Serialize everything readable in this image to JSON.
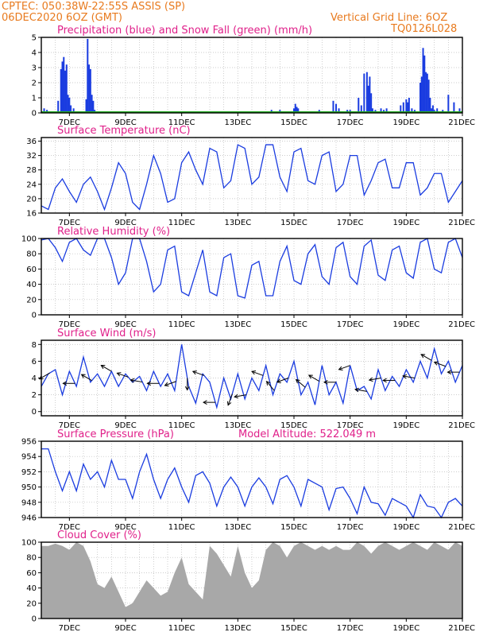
{
  "header": {
    "line1": "CPTEC:  050:38W-22:55S  ASSIS (SP)",
    "line2": "06DEC2020 6OZ (GMT)",
    "grid_note": "Vertical Grid Line: 6OZ",
    "code": "TQ0126L028"
  },
  "x_axis": {
    "unit": "days since 06DEC2020 06Z",
    "range": [
      0,
      15
    ],
    "tick_labels": [
      "7DEC",
      "9DEC",
      "11DEC",
      "13DEC",
      "15DEC",
      "17DEC",
      "19DEC",
      "21DEC"
    ],
    "tick_positions": [
      1,
      3,
      5,
      7,
      9,
      11,
      13,
      15
    ],
    "vertical_grid_every": 0.5
  },
  "colors": {
    "header": "#e87a1e",
    "panel_title": "#e0208a",
    "line": "#1a3ce0",
    "precip": "#1a3ce0",
    "snow": "#22aa22",
    "cloud": "#a8a8a8",
    "arrow": "#000000"
  },
  "panels": [
    {
      "id": "precip",
      "title": "Precipitation (blue) and Snow Fall (green) (mm/h)",
      "yticks": [
        "0",
        "1",
        "2",
        "3",
        "4",
        "5"
      ]
    },
    {
      "id": "temp",
      "title": "Surface Temperature (nC)",
      "yticks": [
        "16",
        "20",
        "24",
        "28",
        "32",
        "36"
      ]
    },
    {
      "id": "rh",
      "title": "Relative Humidity (%)",
      "yticks": [
        "0",
        "20",
        "40",
        "60",
        "80",
        "100"
      ]
    },
    {
      "id": "wind",
      "title": "Surface Wind (m/s)",
      "yticks": [
        "0",
        "2",
        "4",
        "6",
        "8"
      ]
    },
    {
      "id": "pres",
      "title": "Surface Pressure (hPa)",
      "extra": "Model Altitude: 522.049  m",
      "yticks": [
        "946",
        "948",
        "950",
        "952",
        "954",
        "956"
      ]
    },
    {
      "id": "cloud",
      "title": "Cloud Cover (%)",
      "yticks": [
        "0",
        "20",
        "40",
        "60",
        "80",
        "100"
      ]
    }
  ],
  "chart_data": [
    {
      "id": "precip",
      "type": "bar",
      "ylim": [
        0,
        5
      ],
      "x": [
        0.1,
        0.2,
        0.6,
        0.7,
        0.75,
        0.8,
        0.85,
        0.9,
        0.95,
        1.0,
        1.05,
        1.15,
        1.6,
        1.65,
        1.7,
        1.75,
        1.8,
        1.85,
        1.9,
        3.3,
        5.2,
        8.1,
        8.2,
        8.3,
        8.4,
        8.5,
        9.0,
        9.05,
        9.1,
        9.15,
        9.2,
        9.9,
        10.4,
        10.5,
        10.6,
        10.9,
        11.0,
        11.3,
        11.4,
        11.5,
        11.6,
        11.65,
        11.7,
        11.75,
        11.8,
        11.9,
        12.1,
        12.2,
        12.3,
        12.4,
        12.8,
        12.9,
        13.0,
        13.05,
        13.1,
        13.2,
        13.3,
        13.5,
        13.55,
        13.6,
        13.65,
        13.7,
        13.75,
        13.8,
        13.85,
        13.9,
        13.95,
        14.0,
        14.1,
        14.3,
        14.5,
        14.7,
        14.9
      ],
      "values": [
        0.3,
        0.2,
        0.8,
        2.9,
        3.4,
        3.7,
        2.8,
        3.2,
        1.2,
        1.0,
        0.5,
        0.3,
        0.9,
        4.9,
        3.2,
        2.9,
        1.2,
        0.8,
        0.2,
        0.1,
        0.1,
        0.1,
        0.2,
        0.1,
        0.1,
        0.2,
        0.3,
        0.6,
        0.4,
        0.3,
        0.1,
        0.2,
        0.8,
        0.6,
        0.3,
        0.2,
        0.2,
        1.0,
        0.5,
        2.6,
        2.7,
        1.8,
        2.4,
        1.3,
        0.3,
        0.2,
        0.3,
        0.2,
        0.3,
        0.1,
        0.5,
        0.7,
        0.9,
        0.7,
        1.0,
        0.3,
        0.2,
        2.0,
        2.4,
        4.3,
        3.8,
        2.7,
        2.6,
        2.2,
        1.0,
        0.3,
        0.5,
        0.2,
        0.3,
        0.2,
        1.2,
        0.7,
        0.3
      ],
      "snow": 0
    },
    {
      "id": "temp",
      "type": "line",
      "ylim": [
        16,
        37
      ],
      "x": [
        0,
        0.25,
        0.5,
        0.75,
        1,
        1.25,
        1.5,
        1.75,
        2,
        2.25,
        2.5,
        2.75,
        3,
        3.25,
        3.5,
        3.75,
        4,
        4.25,
        4.5,
        4.75,
        5,
        5.25,
        5.5,
        5.75,
        6,
        6.25,
        6.5,
        6.75,
        7,
        7.25,
        7.5,
        7.75,
        8,
        8.25,
        8.5,
        8.75,
        9,
        9.25,
        9.5,
        9.75,
        10,
        10.25,
        10.5,
        10.75,
        11,
        11.25,
        11.5,
        11.75,
        12,
        12.25,
        12.5,
        12.75,
        13,
        13.25,
        13.5,
        13.75,
        14,
        14.25,
        14.5,
        14.75,
        15
      ],
      "values": [
        18,
        17,
        23,
        25.5,
        22,
        19,
        24,
        26,
        22,
        17,
        23,
        30,
        27,
        19,
        17,
        24,
        32,
        27,
        19,
        20,
        30,
        33,
        28,
        24,
        34,
        33,
        23,
        25,
        35,
        34,
        24,
        26,
        35,
        35,
        26,
        22,
        33,
        34,
        25,
        24,
        32,
        33,
        22,
        24,
        32,
        32,
        21,
        25,
        30,
        31,
        23,
        23,
        30,
        30,
        21,
        23,
        27,
        27,
        19,
        22,
        25
      ]
    },
    {
      "id": "rh",
      "type": "line",
      "ylim": [
        0,
        100
      ],
      "x": [
        0,
        0.25,
        0.5,
        0.75,
        1,
        1.25,
        1.5,
        1.75,
        2,
        2.25,
        2.5,
        2.75,
        3,
        3.25,
        3.5,
        3.75,
        4,
        4.25,
        4.5,
        4.75,
        5,
        5.25,
        5.5,
        5.75,
        6,
        6.25,
        6.5,
        6.75,
        7,
        7.25,
        7.5,
        7.75,
        8,
        8.25,
        8.5,
        8.75,
        9,
        9.25,
        9.5,
        9.75,
        10,
        10.25,
        10.5,
        10.75,
        11,
        11.25,
        11.5,
        11.75,
        12,
        12.25,
        12.5,
        12.75,
        13,
        13.25,
        13.5,
        13.75,
        14,
        14.25,
        14.5,
        14.75,
        15
      ],
      "values": [
        98,
        100,
        88,
        70,
        95,
        100,
        85,
        78,
        100,
        100,
        75,
        40,
        55,
        100,
        100,
        70,
        30,
        40,
        85,
        90,
        30,
        25,
        55,
        85,
        30,
        25,
        75,
        80,
        25,
        22,
        65,
        70,
        25,
        25,
        70,
        90,
        45,
        40,
        80,
        92,
        50,
        40,
        88,
        95,
        50,
        40,
        90,
        98,
        52,
        45,
        85,
        90,
        55,
        48,
        95,
        100,
        60,
        55,
        95,
        100,
        75
      ]
    },
    {
      "id": "wind",
      "type": "line",
      "ylim": [
        -0.5,
        8.5
      ],
      "x": [
        0,
        0.25,
        0.5,
        0.75,
        1,
        1.25,
        1.5,
        1.75,
        2,
        2.25,
        2.5,
        2.75,
        3,
        3.25,
        3.5,
        3.75,
        4,
        4.25,
        4.5,
        4.75,
        5,
        5.25,
        5.5,
        5.75,
        6,
        6.25,
        6.5,
        6.75,
        7,
        7.25,
        7.5,
        7.75,
        8,
        8.25,
        8.5,
        8.75,
        9,
        9.25,
        9.5,
        9.75,
        10,
        10.25,
        10.5,
        10.75,
        11,
        11.25,
        11.5,
        11.75,
        12,
        12.25,
        12.5,
        12.75,
        13,
        13.25,
        13.5,
        13.75,
        14,
        14.25,
        14.5,
        14.75,
        15
      ],
      "values": [
        3,
        4.5,
        5,
        2,
        4.8,
        3,
        6.5,
        3.5,
        4.5,
        3,
        4.8,
        3,
        4.5,
        3.5,
        4.2,
        2.5,
        4.8,
        3,
        4.5,
        2.5,
        8,
        3,
        1,
        4.5,
        3.5,
        0.5,
        4,
        1.5,
        4.5,
        1.5,
        4,
        2.5,
        5.5,
        2,
        4.5,
        3.5,
        6,
        2,
        3.5,
        0.8,
        5.5,
        2,
        3.5,
        1,
        5.5,
        2.5,
        3,
        1.5,
        5,
        2.5,
        4.2,
        3,
        5,
        3.5,
        6,
        4,
        7.5,
        4.5,
        6,
        3.5,
        5.5
      ],
      "arrow_times": [
        0.3,
        1.2,
        1.8,
        2.5,
        3.1,
        3.6,
        4.2,
        4.8,
        5.2,
        5.8,
        6.2,
        6.8,
        7.3,
        7.9,
        8.3,
        8.8,
        9.4,
        9.9,
        10.5,
        11.0,
        11.6,
        12.1,
        12.6,
        13.3,
        13.9,
        14.4,
        14.9
      ],
      "arrow_angles_deg": [
        210,
        180,
        150,
        150,
        160,
        170,
        180,
        200,
        270,
        160,
        180,
        250,
        190,
        160,
        130,
        200,
        140,
        150,
        180,
        200,
        170,
        190,
        180,
        170,
        150,
        160,
        180
      ]
    },
    {
      "id": "pres",
      "type": "line",
      "ylim": [
        946,
        956
      ],
      "x": [
        0,
        0.25,
        0.5,
        0.75,
        1,
        1.25,
        1.5,
        1.75,
        2,
        2.25,
        2.5,
        2.75,
        3,
        3.25,
        3.5,
        3.75,
        4,
        4.25,
        4.5,
        4.75,
        5,
        5.25,
        5.5,
        5.75,
        6,
        6.25,
        6.5,
        6.75,
        7,
        7.25,
        7.5,
        7.75,
        8,
        8.25,
        8.5,
        8.75,
        9,
        9.25,
        9.5,
        9.75,
        10,
        10.25,
        10.5,
        10.75,
        11,
        11.25,
        11.5,
        11.75,
        12,
        12.25,
        12.5,
        12.75,
        13,
        13.25,
        13.5,
        13.75,
        14,
        14.25,
        14.5,
        14.75,
        15
      ],
      "values": [
        955,
        955,
        952,
        949.5,
        952,
        949.5,
        953,
        951,
        952,
        950,
        953.5,
        951,
        951,
        948.5,
        952,
        954.3,
        951,
        948.5,
        951,
        952.5,
        950,
        948,
        951.5,
        952,
        950.5,
        947.5,
        950,
        951.3,
        950,
        947.5,
        950,
        951.2,
        950,
        947.8,
        951,
        951.5,
        950,
        947.5,
        951,
        950.5,
        950,
        947,
        949.8,
        950,
        948.5,
        946.5,
        950,
        948,
        947.8,
        946.3,
        948.5,
        948,
        947.5,
        946,
        949,
        947.5,
        947.3,
        946,
        948,
        948.5,
        947.5
      ]
    },
    {
      "id": "cloud",
      "type": "area",
      "ylim": [
        0,
        100
      ],
      "x": [
        0,
        0.25,
        0.5,
        0.75,
        1,
        1.25,
        1.5,
        1.75,
        2,
        2.25,
        2.5,
        2.75,
        3,
        3.25,
        3.5,
        3.75,
        4,
        4.25,
        4.5,
        4.75,
        5,
        5.25,
        5.5,
        5.75,
        6,
        6.25,
        6.5,
        6.75,
        7,
        7.25,
        7.5,
        7.75,
        8,
        8.25,
        8.5,
        8.75,
        9,
        9.25,
        9.5,
        9.75,
        10,
        10.25,
        10.5,
        10.75,
        11,
        11.25,
        11.5,
        11.75,
        12,
        12.25,
        12.5,
        12.75,
        13,
        13.25,
        13.5,
        13.75,
        14,
        14.25,
        14.5,
        14.75,
        15
      ],
      "values": [
        95,
        95,
        98,
        95,
        90,
        100,
        95,
        75,
        45,
        40,
        55,
        35,
        15,
        20,
        35,
        50,
        40,
        30,
        35,
        60,
        80,
        45,
        35,
        25,
        95,
        85,
        70,
        55,
        95,
        60,
        40,
        50,
        90,
        100,
        95,
        80,
        95,
        100,
        95,
        90,
        95,
        90,
        95,
        90,
        90,
        100,
        95,
        85,
        95,
        100,
        95,
        90,
        95,
        100,
        95,
        90,
        100,
        95,
        90,
        100,
        95
      ]
    }
  ]
}
